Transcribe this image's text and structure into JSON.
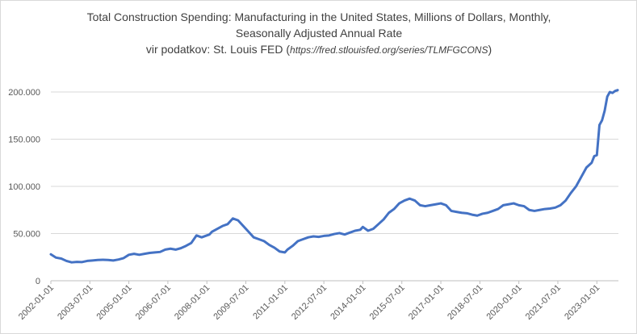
{
  "chart_data": {
    "type": "line",
    "title_lines": [
      "Total Construction Spending: Manufacturing in the United States, Millions of Dollars, Monthly,",
      "Seasonally Adjusted Annual Rate"
    ],
    "source": {
      "prefix": "vir podatkov: St. Louis FED (",
      "url": "https://fred.stlouisfed.org/series/TLMFGCONS",
      "suffix": ")"
    },
    "xlabel": "",
    "ylabel": "",
    "xlim": [
      2002.0,
      2023.83
    ],
    "ylim": [
      0,
      200000
    ],
    "ytick_values": [
      0,
      50000,
      100000,
      150000,
      200000
    ],
    "ytick_labels": [
      "0",
      "50.000",
      "100.000",
      "150.000",
      "200.000"
    ],
    "xtick_values": [
      2002.0,
      2003.5,
      2005.0,
      2006.5,
      2008.0,
      2009.5,
      2011.0,
      2012.5,
      2014.0,
      2015.5,
      2017.0,
      2018.5,
      2020.0,
      2021.5,
      2023.0
    ],
    "xtick_labels": [
      "2002-01-01",
      "2003-07-01",
      "2005-01-01",
      "2006-07-01",
      "2008-01-01",
      "2009-07-01",
      "2011-01-01",
      "2012-07-01",
      "2014-01-01",
      "2015-07-01",
      "2017-01-01",
      "2018-07-01",
      "2020-01-01",
      "2021-07-01",
      "2023-01-01"
    ],
    "series": [
      {
        "name": "TLMFGCONS",
        "color": "#4472c4",
        "x": [
          2002.0,
          2002.2,
          2002.4,
          2002.6,
          2002.8,
          2003.0,
          2003.2,
          2003.4,
          2003.6,
          2003.8,
          2004.0,
          2004.2,
          2004.4,
          2004.6,
          2004.8,
          2005.0,
          2005.2,
          2005.4,
          2005.6,
          2005.8,
          2006.0,
          2006.2,
          2006.4,
          2006.6,
          2006.8,
          2007.0,
          2007.2,
          2007.4,
          2007.6,
          2007.8,
          2008.0,
          2008.1,
          2008.2,
          2008.4,
          2008.6,
          2008.8,
          2009.0,
          2009.2,
          2009.4,
          2009.6,
          2009.8,
          2010.0,
          2010.2,
          2010.4,
          2010.6,
          2010.8,
          2011.0,
          2011.1,
          2011.3,
          2011.5,
          2011.7,
          2011.9,
          2012.1,
          2012.3,
          2012.5,
          2012.7,
          2012.9,
          2013.1,
          2013.3,
          2013.5,
          2013.7,
          2013.9,
          2014.0,
          2014.2,
          2014.4,
          2014.6,
          2014.8,
          2015.0,
          2015.2,
          2015.4,
          2015.6,
          2015.8,
          2016.0,
          2016.2,
          2016.4,
          2016.6,
          2016.8,
          2017.0,
          2017.2,
          2017.4,
          2017.6,
          2017.8,
          2018.0,
          2018.2,
          2018.4,
          2018.6,
          2018.8,
          2019.0,
          2019.2,
          2019.4,
          2019.6,
          2019.8,
          2020.0,
          2020.2,
          2020.4,
          2020.6,
          2020.8,
          2021.0,
          2021.2,
          2021.4,
          2021.6,
          2021.8,
          2022.0,
          2022.2,
          2022.4,
          2022.6,
          2022.8,
          2022.9,
          2023.0,
          2023.1,
          2023.2,
          2023.3,
          2023.4,
          2023.5,
          2023.6,
          2023.7,
          2023.8
        ],
        "values": [
          28000,
          24500,
          23500,
          21000,
          19500,
          20000,
          19800,
          21000,
          21500,
          22000,
          22200,
          22000,
          21500,
          22500,
          24000,
          27500,
          28500,
          27500,
          28500,
          29500,
          30000,
          30500,
          33000,
          34000,
          33000,
          34500,
          37000,
          40000,
          48000,
          46000,
          48000,
          49000,
          52000,
          55000,
          58000,
          60000,
          66000,
          64000,
          58000,
          52000,
          46000,
          44000,
          42000,
          38000,
          35000,
          31000,
          30000,
          33000,
          37000,
          42000,
          44000,
          46000,
          47000,
          46500,
          47500,
          48000,
          49500,
          50500,
          49000,
          51000,
          53000,
          54000,
          57000,
          53000,
          55000,
          60000,
          65000,
          72000,
          76000,
          82000,
          85000,
          87000,
          85000,
          80000,
          79000,
          80000,
          81000,
          82000,
          80000,
          74000,
          73000,
          72000,
          71500,
          70000,
          69000,
          71000,
          72000,
          74000,
          76000,
          80000,
          81000,
          82000,
          80000,
          79000,
          75000,
          74000,
          75000,
          76000,
          76500,
          77500,
          80000,
          85000,
          93000,
          100000,
          110000,
          120000,
          125000,
          132000,
          133000,
          165000,
          170000,
          180000,
          195000,
          200000,
          199000,
          201000,
          202000
        ]
      }
    ]
  }
}
